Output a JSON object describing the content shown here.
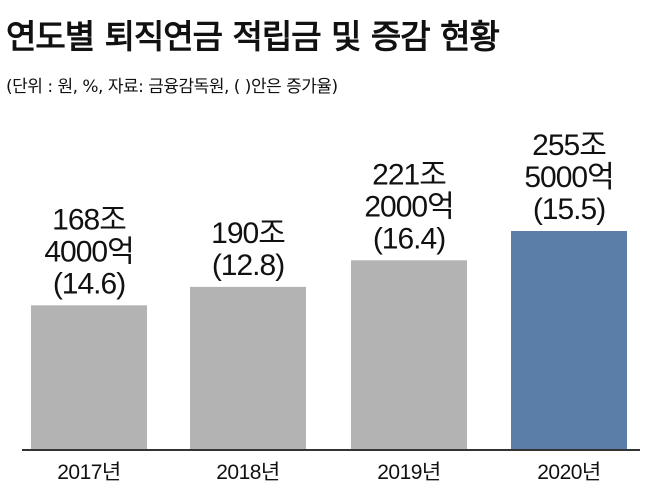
{
  "title": "연도별 퇴직연금 적립금 및 증감 현황",
  "subtitle": "(단위 : 원, %, 자료: 금융감독원, (   )안은 증가율)",
  "colors": {
    "bar_default": "#b3b3b3",
    "bar_highlight": "#5b7ea8",
    "baseline": "#333333",
    "text": "#111111"
  },
  "chart_data": {
    "type": "bar",
    "title": "연도별 퇴직연금 적립금 및 증감 현황",
    "categories": [
      "2017년",
      "2018년",
      "2019년",
      "2020년"
    ],
    "values": [
      168.4,
      190,
      221.2,
      255.5
    ],
    "unit": "조 원",
    "growth_rates": [
      14.6,
      12.8,
      16.4,
      15.5
    ],
    "labels": [
      [
        "168조",
        "4000억",
        "(14.6)"
      ],
      [
        "190조",
        "(12.8)"
      ],
      [
        "221조",
        "2000억",
        "(16.4)"
      ],
      [
        "255조",
        "5000억",
        "(15.5)"
      ]
    ],
    "highlight_index": 3,
    "ylim": [
      0,
      255.5
    ],
    "grid": false,
    "legend": "none",
    "xlabel": "",
    "ylabel": ""
  }
}
